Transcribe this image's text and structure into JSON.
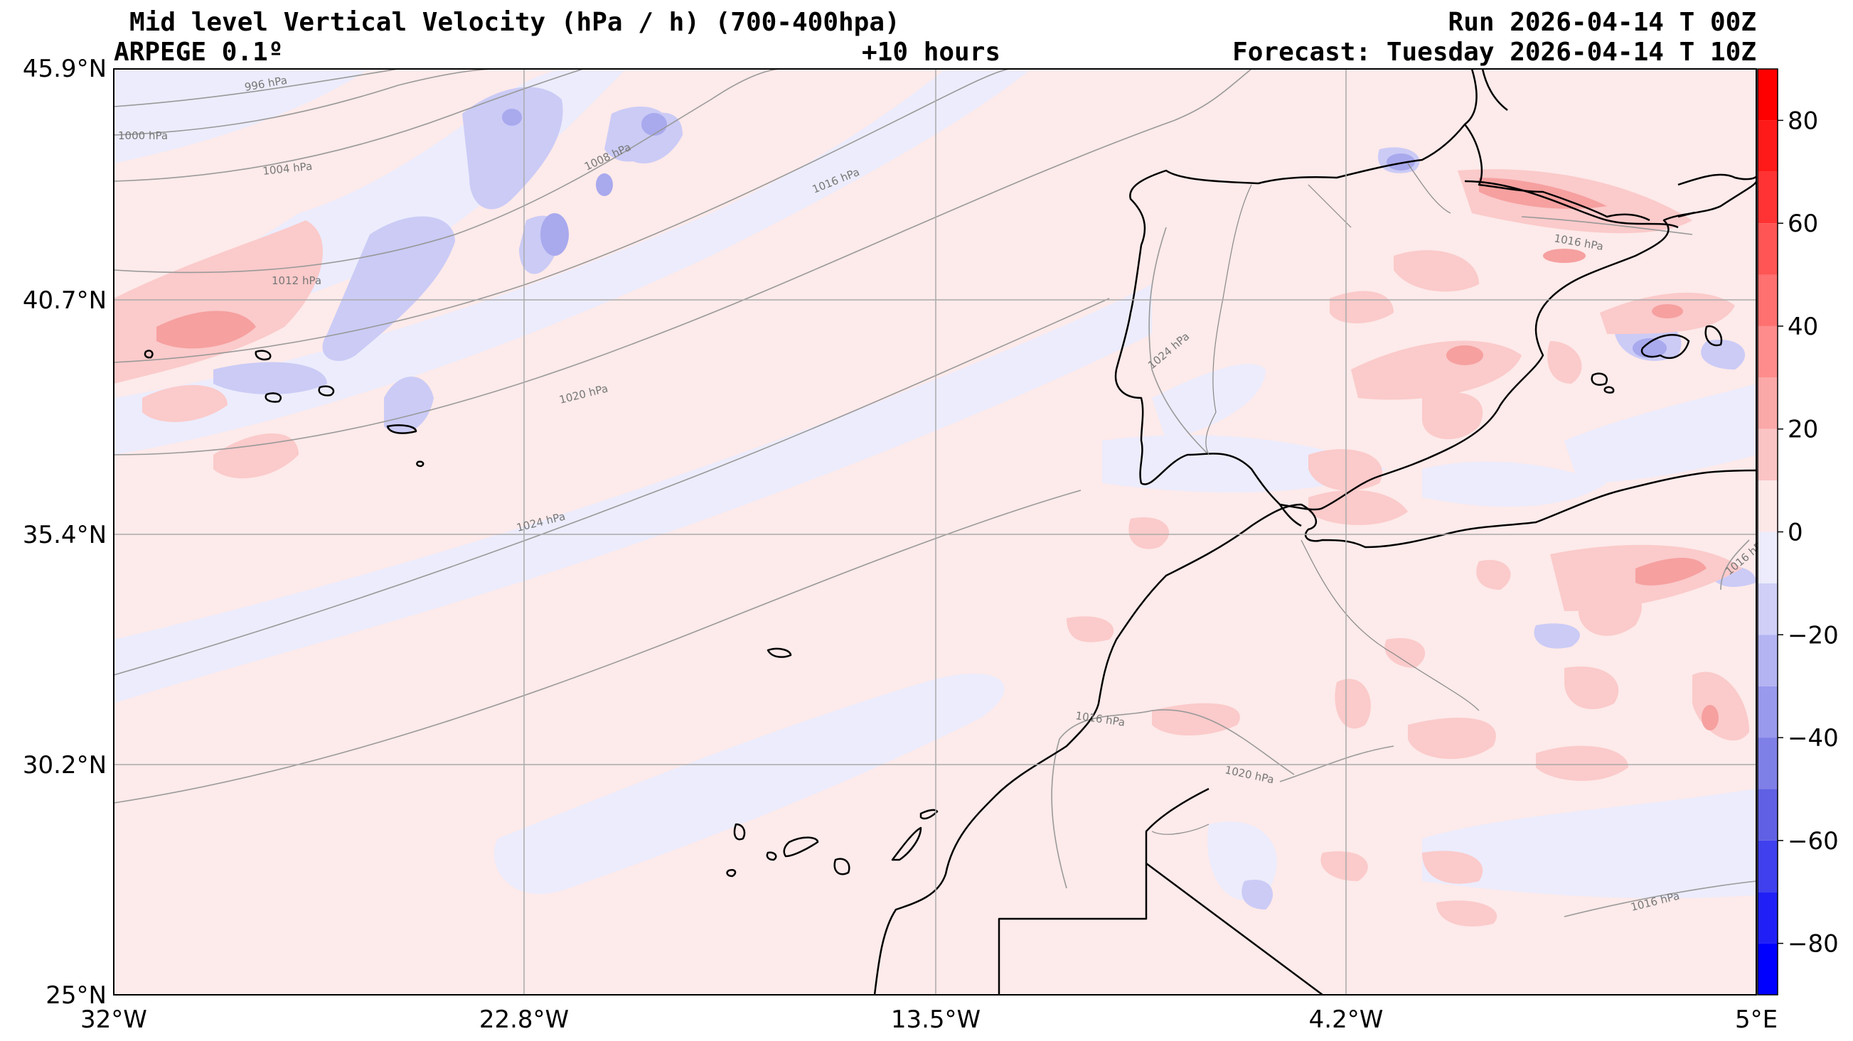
{
  "header": {
    "title": "Mid level Vertical Velocity (hPa / h)  (700-400hpa)",
    "model": "ARPEGE 0.1º",
    "lead": "+10 hours",
    "run": "Run 2026-04-14 T 00Z",
    "forecast": "Forecast: Tuesday 2026-04-14 T 10Z"
  },
  "axes": {
    "lat_labels": [
      "45.9°N",
      "40.7°N",
      "35.4°N",
      "30.2°N",
      "25°N"
    ],
    "lon_labels": [
      "32°W",
      "22.8°W",
      "13.5°W",
      "4.2°W",
      "5°E"
    ]
  },
  "colorbar": {
    "ticks": [
      "80",
      "60",
      "40",
      "20",
      "0",
      "−20",
      "−40",
      "−60",
      "−80"
    ],
    "tick_values": [
      80,
      60,
      40,
      20,
      0,
      -20,
      -40,
      -60,
      -80
    ],
    "range": [
      -90,
      90
    ],
    "colors": {
      "strong_positive": "#ff0000",
      "weak_positive": "#fde8e8",
      "weak_negative": "#ececfc",
      "strong_negative": "#0000ff"
    }
  },
  "isobars": [
    "996 hPa",
    "1000 hPa",
    "1004 hPa",
    "1008 hPa",
    "1012 hPa",
    "1016 hPa",
    "1020 hPa",
    "1024 hPa",
    "1024 hPa",
    "1016 hPa",
    "1016 hPa",
    "1020 hPa",
    "1016 hPa",
    "1016 hPa"
  ]
}
